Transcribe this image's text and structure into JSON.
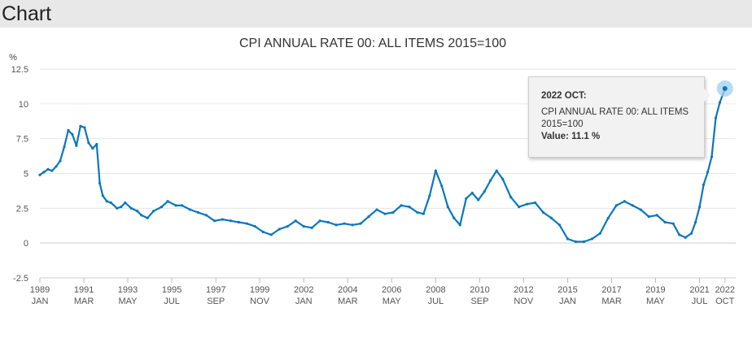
{
  "header": {
    "title": "Chart"
  },
  "tooltip": {
    "date": "2022 OCT:",
    "series": "CPI ANNUAL RATE 00: ALL ITEMS 2015=100",
    "value": "Value: 11.1 %"
  },
  "chart_data": {
    "type": "line",
    "title": "CPI ANNUAL RATE 00: ALL ITEMS 2015=100",
    "ylabel": "%",
    "ylim": [
      -2.5,
      12.5
    ],
    "xlim": [
      1989.0,
      2022.8
    ],
    "yticks": [
      -2.5,
      0,
      2.5,
      5,
      7.5,
      10,
      12.5
    ],
    "ytick_labels": [
      "-2.5",
      "0",
      "2.5",
      "5",
      "7.5",
      "10",
      "12.5"
    ],
    "xticks": [
      {
        "value": 1989.0,
        "year": "1989",
        "month": "JAN"
      },
      {
        "value": 1991.17,
        "year": "1991",
        "month": "MAR"
      },
      {
        "value": 1993.33,
        "year": "1993",
        "month": "MAY"
      },
      {
        "value": 1995.5,
        "year": "1995",
        "month": "JUL"
      },
      {
        "value": 1997.67,
        "year": "1997",
        "month": "SEP"
      },
      {
        "value": 1999.83,
        "year": "1999",
        "month": "NOV"
      },
      {
        "value": 2002.0,
        "year": "2002",
        "month": "JAN"
      },
      {
        "value": 2004.17,
        "year": "2004",
        "month": "MAR"
      },
      {
        "value": 2006.33,
        "year": "2006",
        "month": "MAY"
      },
      {
        "value": 2008.5,
        "year": "2008",
        "month": "JUL"
      },
      {
        "value": 2010.67,
        "year": "2010",
        "month": "SEP"
      },
      {
        "value": 2012.83,
        "year": "2012",
        "month": "NOV"
      },
      {
        "value": 2015.0,
        "year": "2015",
        "month": "JAN"
      },
      {
        "value": 2017.17,
        "year": "2017",
        "month": "MAR"
      },
      {
        "value": 2019.33,
        "year": "2019",
        "month": "MAY"
      },
      {
        "value": 2021.5,
        "year": "2021",
        "month": "JUL"
      },
      {
        "value": 2022.75,
        "year": "2022",
        "month": "OCT"
      }
    ],
    "series": [
      {
        "name": "CPI ANNUAL RATE 00: ALL ITEMS 2015=100",
        "color": "#0a77bd",
        "x": [
          1989.0,
          1989.2,
          1989.4,
          1989.6,
          1989.8,
          1990.0,
          1990.2,
          1990.4,
          1990.6,
          1990.8,
          1991.0,
          1991.2,
          1991.4,
          1991.6,
          1991.8,
          1991.95,
          1992.1,
          1992.3,
          1992.5,
          1992.8,
          1993.0,
          1993.2,
          1993.5,
          1993.8,
          1994.0,
          1994.3,
          1994.6,
          1995.0,
          1995.3,
          1995.7,
          1996.0,
          1996.4,
          1996.8,
          1997.2,
          1997.6,
          1998.0,
          1998.4,
          1998.8,
          1999.2,
          1999.6,
          2000.0,
          2000.4,
          2000.8,
          2001.2,
          2001.6,
          2002.0,
          2002.4,
          2002.8,
          2003.2,
          2003.6,
          2004.0,
          2004.4,
          2004.8,
          2005.2,
          2005.6,
          2006.0,
          2006.4,
          2006.8,
          2007.2,
          2007.6,
          2007.9,
          2008.2,
          2008.5,
          2008.8,
          2009.1,
          2009.4,
          2009.7,
          2010.0,
          2010.3,
          2010.6,
          2010.9,
          2011.2,
          2011.5,
          2011.8,
          2012.2,
          2012.6,
          2013.0,
          2013.4,
          2013.8,
          2014.2,
          2014.6,
          2015.0,
          2015.4,
          2015.8,
          2016.2,
          2016.6,
          2017.0,
          2017.4,
          2017.8,
          2018.2,
          2018.6,
          2019.0,
          2019.4,
          2019.8,
          2020.2,
          2020.5,
          2020.8,
          2021.1,
          2021.3,
          2021.5,
          2021.7,
          2021.9,
          2022.1,
          2022.3,
          2022.5,
          2022.75
        ],
        "values": [
          4.9,
          5.1,
          5.3,
          5.2,
          5.5,
          5.9,
          6.9,
          8.1,
          7.8,
          7.0,
          8.4,
          8.3,
          7.2,
          6.8,
          7.1,
          4.3,
          3.4,
          3.0,
          2.9,
          2.5,
          2.6,
          2.9,
          2.5,
          2.3,
          2.0,
          1.8,
          2.3,
          2.6,
          3.0,
          2.7,
          2.7,
          2.4,
          2.2,
          2.0,
          1.6,
          1.7,
          1.6,
          1.5,
          1.4,
          1.2,
          0.8,
          0.6,
          1.0,
          1.2,
          1.6,
          1.2,
          1.1,
          1.6,
          1.5,
          1.3,
          1.4,
          1.3,
          1.4,
          1.9,
          2.4,
          2.1,
          2.2,
          2.7,
          2.6,
          2.2,
          2.1,
          3.4,
          5.2,
          4.1,
          2.6,
          1.8,
          1.3,
          3.2,
          3.6,
          3.1,
          3.7,
          4.5,
          5.2,
          4.6,
          3.3,
          2.6,
          2.8,
          2.9,
          2.2,
          1.8,
          1.3,
          0.3,
          0.1,
          0.1,
          0.3,
          0.7,
          1.8,
          2.7,
          3.0,
          2.7,
          2.4,
          1.9,
          2.0,
          1.5,
          1.4,
          0.6,
          0.4,
          0.7,
          1.5,
          2.6,
          4.2,
          5.1,
          6.2,
          9.0,
          10.1,
          11.1
        ]
      }
    ]
  }
}
